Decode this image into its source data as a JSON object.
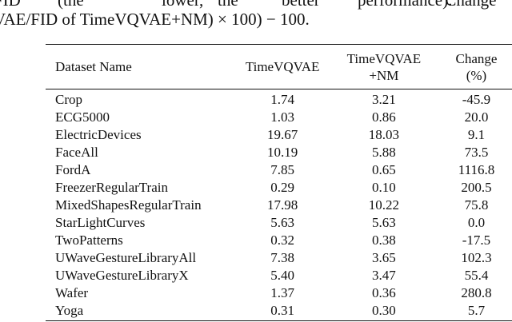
{
  "caption": {
    "line1_words": [
      "FID",
      "(the",
      "lower,",
      "the",
      "better",
      "performance)."
    ],
    "line1_tail": "“Change”",
    "line2": "VAE/FID of TimeVQVAE+NM) × 100) − 100."
  },
  "table": {
    "headers": {
      "dataset": "Dataset Name",
      "timevqvae": "TimeVQVAE",
      "timevqvae_nm_line1": "TimeVQVAE",
      "timevqvae_nm_line2": "+NM",
      "change_line1": "Change",
      "change_line2": "(%)"
    },
    "rows": [
      {
        "name": "Crop",
        "timevqvae": "1.74",
        "timevqvae_nm": "3.21",
        "change": "-45.9"
      },
      {
        "name": "ECG5000",
        "timevqvae": "1.03",
        "timevqvae_nm": "0.86",
        "change": "20.0"
      },
      {
        "name": "ElectricDevices",
        "timevqvae": "19.67",
        "timevqvae_nm": "18.03",
        "change": "9.1"
      },
      {
        "name": "FaceAll",
        "timevqvae": "10.19",
        "timevqvae_nm": "5.88",
        "change": "73.5"
      },
      {
        "name": "FordA",
        "timevqvae": "7.85",
        "timevqvae_nm": "0.65",
        "change": "1116.8"
      },
      {
        "name": "FreezerRegularTrain",
        "timevqvae": "0.29",
        "timevqvae_nm": "0.10",
        "change": "200.5"
      },
      {
        "name": "MixedShapesRegularTrain",
        "timevqvae": "17.98",
        "timevqvae_nm": "10.22",
        "change": "75.8"
      },
      {
        "name": "StarLightCurves",
        "timevqvae": "5.63",
        "timevqvae_nm": "5.63",
        "change": "0.0"
      },
      {
        "name": "TwoPatterns",
        "timevqvae": "0.32",
        "timevqvae_nm": "0.38",
        "change": "-17.5"
      },
      {
        "name": "UWaveGestureLibraryAll",
        "timevqvae": "7.38",
        "timevqvae_nm": "3.65",
        "change": "102.3"
      },
      {
        "name": "UWaveGestureLibraryX",
        "timevqvae": "5.40",
        "timevqvae_nm": "3.47",
        "change": "55.4"
      },
      {
        "name": "Wafer",
        "timevqvae": "1.37",
        "timevqvae_nm": "0.36",
        "change": "280.8"
      },
      {
        "name": "Yoga",
        "timevqvae": "0.31",
        "timevqvae_nm": "0.30",
        "change": "5.7"
      }
    ]
  }
}
